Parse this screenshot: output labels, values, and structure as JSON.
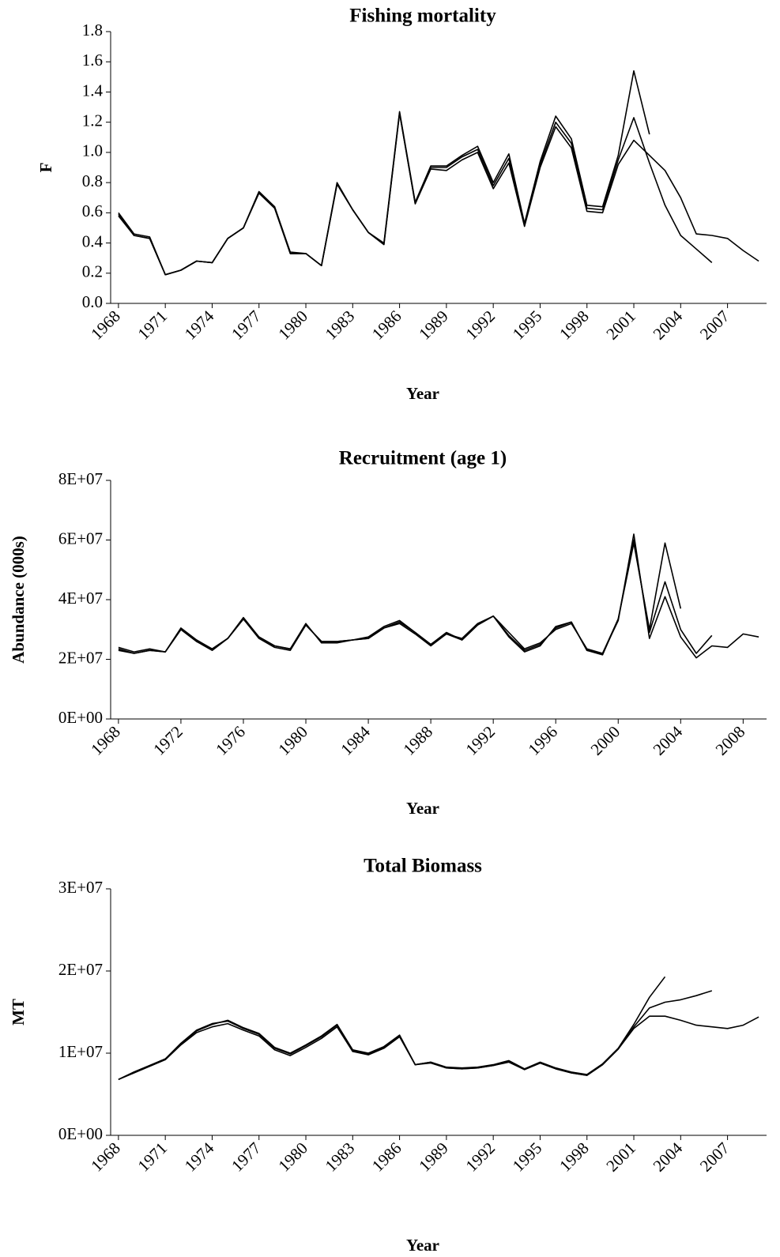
{
  "chart_data": [
    {
      "type": "line",
      "title": "Fishing mortality",
      "xlabel": "Year",
      "ylabel": "F",
      "x": [
        1968,
        1969,
        1970,
        1971,
        1972,
        1973,
        1974,
        1975,
        1976,
        1977,
        1978,
        1979,
        1980,
        1981,
        1982,
        1983,
        1984,
        1985,
        1986,
        1987,
        1988,
        1989,
        1990,
        1991,
        1992,
        1993,
        1994,
        1995,
        1996,
        1997,
        1998,
        1999,
        2000,
        2001,
        2002,
        2003,
        2004,
        2005,
        2006,
        2007,
        2008,
        2009
      ],
      "xlim": [
        1967.5,
        2009.5
      ],
      "xticks": [
        1968,
        1971,
        1974,
        1977,
        1980,
        1983,
        1986,
        1989,
        1992,
        1995,
        1998,
        2001,
        2004,
        2007
      ],
      "ylim": [
        0,
        1.8
      ],
      "yticks": [
        {
          "value": 0,
          "label": "0.0"
        },
        0.2,
        0.4,
        0.6,
        0.8,
        {
          "value": 1,
          "label": "1.0"
        },
        1.2,
        1.4,
        1.6,
        1.8
      ],
      "series": [
        {
          "color": "#000000",
          "values": [
            0.6,
            0.46,
            0.44,
            0.19,
            0.22,
            0.28,
            0.27,
            0.43,
            0.5,
            0.74,
            0.64,
            0.33,
            0.33,
            0.25,
            0.79,
            0.62,
            0.47,
            0.39,
            1.26,
            0.66,
            0.89,
            0.88,
            0.95,
            1.0,
            0.76,
            0.93,
            0.51,
            0.9,
            1.17,
            1.03,
            0.61,
            0.6,
            0.92,
            1.08,
            0.98,
            0.88,
            0.7,
            0.46,
            0.45,
            0.43,
            0.35,
            0.28
          ]
        },
        {
          "color": "#000000",
          "values": [
            0.59,
            0.45,
            0.43,
            0.19,
            0.22,
            0.28,
            0.27,
            0.43,
            0.5,
            0.73,
            0.63,
            0.33,
            0.33,
            0.25,
            0.79,
            0.62,
            0.47,
            0.39,
            1.26,
            0.66,
            0.9,
            0.9,
            0.97,
            1.02,
            0.78,
            0.96,
            0.52,
            0.92,
            1.2,
            1.06,
            0.63,
            0.62,
            0.95,
            1.23,
            0.93,
            0.65,
            0.45,
            0.36,
            0.27,
            null,
            null,
            null
          ]
        },
        {
          "color": "#000000",
          "values": [
            0.58,
            0.45,
            0.43,
            0.19,
            0.22,
            0.28,
            0.27,
            0.43,
            0.5,
            0.74,
            0.64,
            0.34,
            0.33,
            0.25,
            0.8,
            0.62,
            0.47,
            0.4,
            1.27,
            0.67,
            0.91,
            0.91,
            0.98,
            1.04,
            0.8,
            0.99,
            0.53,
            0.94,
            1.24,
            1.09,
            0.65,
            0.64,
            0.98,
            1.54,
            1.12,
            null,
            null,
            null,
            null,
            null,
            null,
            null
          ]
        }
      ]
    },
    {
      "type": "line",
      "title": "Recruitment (age 1)",
      "xlabel": "Year",
      "ylabel": "Abundance (000s)",
      "x": [
        1968,
        1969,
        1970,
        1971,
        1972,
        1973,
        1974,
        1975,
        1976,
        1977,
        1978,
        1979,
        1980,
        1981,
        1982,
        1983,
        1984,
        1985,
        1986,
        1987,
        1988,
        1989,
        1990,
        1991,
        1992,
        1993,
        1994,
        1995,
        1996,
        1997,
        1998,
        1999,
        2000,
        2001,
        2002,
        2003,
        2004,
        2005,
        2006,
        2007,
        2008,
        2009
      ],
      "xlim": [
        1967.5,
        2009.5
      ],
      "xticks": [
        1968,
        1972,
        1976,
        1980,
        1984,
        1988,
        1992,
        1996,
        2000,
        2004,
        2008
      ],
      "ylim": [
        0,
        80000000.0
      ],
      "yticks": [
        {
          "value": 0,
          "label": "0E+00"
        },
        {
          "value": 20000000.0,
          "label": "2E+07"
        },
        {
          "value": 40000000.0,
          "label": "4E+07"
        },
        {
          "value": 60000000.0,
          "label": "6E+07"
        },
        {
          "value": 80000000.0,
          "label": "8E+07"
        }
      ],
      "series": [
        {
          "color": "#000000",
          "values": [
            23500000.0,
            22000000.0,
            23000000.0,
            22500000.0,
            30000000.0,
            26000000.0,
            23500000.0,
            27000000.0,
            33500000.0,
            27500000.0,
            24500000.0,
            23500000.0,
            31500000.0,
            26000000.0,
            26000000.0,
            26500000.0,
            27000000.0,
            30500000.0,
            32500000.0,
            29000000.0,
            25000000.0,
            28500000.0,
            26500000.0,
            31500000.0,
            34500000.0,
            29000000.0,
            23500000.0,
            25500000.0,
            30000000.0,
            32000000.0,
            23500000.0,
            22000000.0,
            33000000.0,
            62000000.0,
            27000000.0,
            41000000.0,
            27500000.0,
            20500000.0,
            24500000.0,
            24000000.0,
            28500000.0,
            27500000.0
          ]
        },
        {
          "color": "#000000",
          "values": [
            23000000.0,
            22000000.0,
            23000000.0,
            22500000.0,
            30000000.0,
            26000000.0,
            23000000.0,
            27000000.0,
            34000000.0,
            27500000.0,
            24500000.0,
            23500000.0,
            32000000.0,
            25500000.0,
            25500000.0,
            26500000.0,
            27500000.0,
            31000000.0,
            33000000.0,
            29000000.0,
            25000000.0,
            29000000.0,
            26500000.0,
            31500000.0,
            34500000.0,
            28000000.0,
            23000000.0,
            25000000.0,
            30500000.0,
            32500000.0,
            23000000.0,
            22000000.0,
            33500000.0,
            60000000.0,
            29000000.0,
            46000000.0,
            30000000.0,
            22000000.0,
            28000000.0,
            null,
            null,
            null
          ]
        },
        {
          "color": "#000000",
          "values": [
            24000000.0,
            22500000.0,
            23500000.0,
            22500000.0,
            30500000.0,
            26500000.0,
            23500000.0,
            27000000.0,
            33500000.0,
            27000000.0,
            24000000.0,
            23000000.0,
            31500000.0,
            26000000.0,
            26000000.0,
            26500000.0,
            27000000.0,
            30500000.0,
            32000000.0,
            28500000.0,
            24500000.0,
            28500000.0,
            27000000.0,
            32000000.0,
            34500000.0,
            27500000.0,
            22500000.0,
            24500000.0,
            31000000.0,
            32500000.0,
            23000000.0,
            21500000.0,
            33500000.0,
            59000000.0,
            30000000.0,
            59000000.0,
            37000000.0,
            null,
            null,
            null,
            null,
            null
          ]
        }
      ]
    },
    {
      "type": "line",
      "title": "Total Biomass",
      "xlabel": "Year",
      "ylabel": "MT",
      "x": [
        1968,
        1969,
        1970,
        1971,
        1972,
        1973,
        1974,
        1975,
        1976,
        1977,
        1978,
        1979,
        1980,
        1981,
        1982,
        1983,
        1984,
        1985,
        1986,
        1987,
        1988,
        1989,
        1990,
        1991,
        1992,
        1993,
        1994,
        1995,
        1996,
        1997,
        1998,
        1999,
        2000,
        2001,
        2002,
        2003,
        2004,
        2005,
        2006,
        2007,
        2008,
        2009
      ],
      "xlim": [
        1967.5,
        2009.5
      ],
      "xticks": [
        1968,
        1971,
        1974,
        1977,
        1980,
        1983,
        1986,
        1989,
        1992,
        1995,
        1998,
        2001,
        2004,
        2007
      ],
      "ylim": [
        0,
        30000000.0
      ],
      "yticks": [
        {
          "value": 0,
          "label": "0E+00"
        },
        {
          "value": 10000000.0,
          "label": "1E+07"
        },
        {
          "value": 20000000.0,
          "label": "2E+07"
        },
        {
          "value": 30000000.0,
          "label": "3E+07"
        }
      ],
      "series": [
        {
          "color": "#000000",
          "values": [
            6800000.0,
            7600000.0,
            8400000.0,
            9200000.0,
            11000000.0,
            12500000.0,
            13200000.0,
            13600000.0,
            12800000.0,
            12100000.0,
            10400000.0,
            9700000.0,
            10700000.0,
            11800000.0,
            13200000.0,
            10200000.0,
            9800000.0,
            10600000.0,
            12000000.0,
            8600000.0,
            8800000.0,
            8200000.0,
            8100000.0,
            8200000.0,
            8500000.0,
            8900000.0,
            8000000.0,
            8800000.0,
            8100000.0,
            7600000.0,
            7300000.0,
            8600000.0,
            10500000.0,
            13000000.0,
            14500000.0,
            14500000.0,
            14000000.0,
            13400000.0,
            13200000.0,
            13000000.0,
            13400000.0,
            14400000.0
          ]
        },
        {
          "color": "#000000",
          "values": [
            6800000.0,
            7700000.0,
            8500000.0,
            9300000.0,
            11200000.0,
            12800000.0,
            13600000.0,
            13900000.0,
            13000000.0,
            12300000.0,
            10600000.0,
            9900000.0,
            10900000.0,
            12000000.0,
            13400000.0,
            10300000.0,
            9900000.0,
            10700000.0,
            12100000.0,
            8600000.0,
            8900000.0,
            8200000.0,
            8100000.0,
            8200000.0,
            8500000.0,
            9000000.0,
            8000000.0,
            8800000.0,
            8100000.0,
            7600000.0,
            7300000.0,
            8600000.0,
            10500000.0,
            13200000.0,
            15500000.0,
            16200000.0,
            16500000.0,
            17000000.0,
            17600000.0,
            null,
            null,
            null
          ]
        },
        {
          "color": "#000000",
          "values": [
            6800000.0,
            7700000.0,
            8500000.0,
            9300000.0,
            11100000.0,
            12700000.0,
            13500000.0,
            14000000.0,
            13100000.0,
            12400000.0,
            10700000.0,
            10000000.0,
            11000000.0,
            12100000.0,
            13500000.0,
            10400000.0,
            10000000.0,
            10800000.0,
            12200000.0,
            8600000.0,
            8900000.0,
            8300000.0,
            8200000.0,
            8300000.0,
            8600000.0,
            9100000.0,
            8100000.0,
            8900000.0,
            8200000.0,
            7700000.0,
            7400000.0,
            8700000.0,
            10600000.0,
            13500000.0,
            16800000.0,
            19300000.0,
            null,
            null,
            null,
            null,
            null,
            null
          ]
        }
      ]
    }
  ]
}
